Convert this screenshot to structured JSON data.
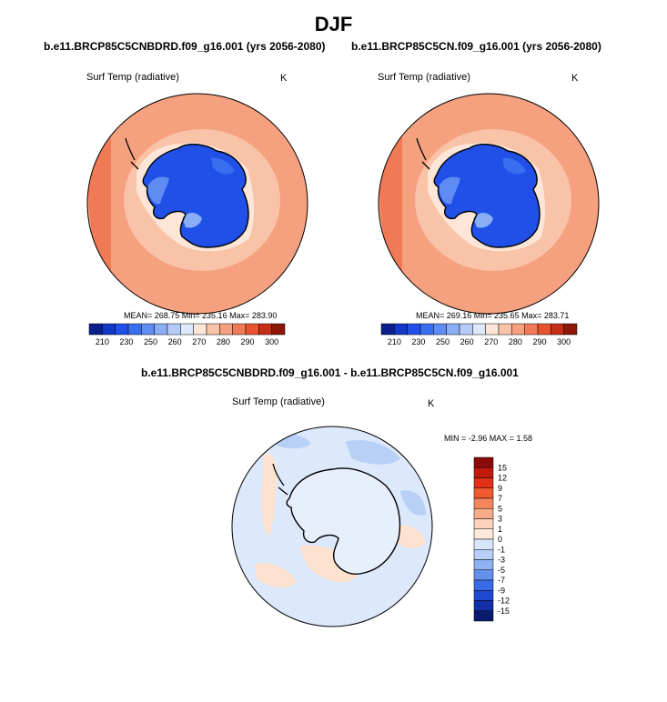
{
  "figure": {
    "title": "DJF"
  },
  "panels": [
    {
      "id": "left",
      "title": "b.e11.BRCP85C5CNBDRD.f09_g16.001 (yrs 2056-2080)",
      "variable": "Surf Temp (radiative)",
      "units": "K",
      "stats": "MEAN= 268.75  Min= 235.16  Max= 283.90"
    },
    {
      "id": "right",
      "title": "b.e11.BRCP85C5CN.f09_g16.001 (yrs 2056-2080)",
      "variable": "Surf Temp (radiative)",
      "units": "K",
      "stats": "MEAN= 269.16  Min= 235.65  Max= 283.71"
    },
    {
      "id": "diff",
      "title": "b.e11.BRCP85C5CNBDRD.f09_g16.001 - b.e11.BRCP85C5CN.f09_g16.001",
      "variable": "Surf Temp (radiative)",
      "units": "K",
      "stats": "MIN =  -2.96 MAX =   1.58"
    }
  ],
  "colorbars": {
    "horizontal": {
      "tick_labels": [
        "210",
        "230",
        "250",
        "260",
        "270",
        "280",
        "290",
        "300"
      ],
      "colors": [
        "#0a1f8c",
        "#1238c8",
        "#2050e8",
        "#3a6ef0",
        "#5e8cf2",
        "#8aaef5",
        "#b5cbf7",
        "#dce8fb",
        "#fde6d8",
        "#f9c3a8",
        "#f5a07e",
        "#f07a55",
        "#e8532f",
        "#c62f16",
        "#8e1706"
      ]
    },
    "vertical": {
      "tick_labels": [
        "15",
        "12",
        "9",
        "7",
        "5",
        "3",
        "1",
        "0",
        "-1",
        "-3",
        "-5",
        "-7",
        "-9",
        "-12",
        "-15"
      ],
      "colors": [
        "#8b0a0a",
        "#c01a0e",
        "#e03218",
        "#f05a30",
        "#f5855c",
        "#f8ab88",
        "#fbd3bb",
        "#fde9dc",
        "#d7e6fb",
        "#b7cff7",
        "#8fb2f2",
        "#6490ec",
        "#3a6be6",
        "#1f48d0",
        "#1430a8",
        "#0a1a6e"
      ]
    }
  },
  "field_colors": {
    "ocean_outer": "#f5a07e",
    "ocean_mid": "#f9c3a8",
    "ocean_edge": "#f07a55",
    "coast": "#fde6d8",
    "ice": "#2050e8",
    "ice_light": "#5e8cf2",
    "diff_base": "#dce8fb",
    "diff_pos": "#fde3cf",
    "diff_neg": "#b8cff6"
  }
}
